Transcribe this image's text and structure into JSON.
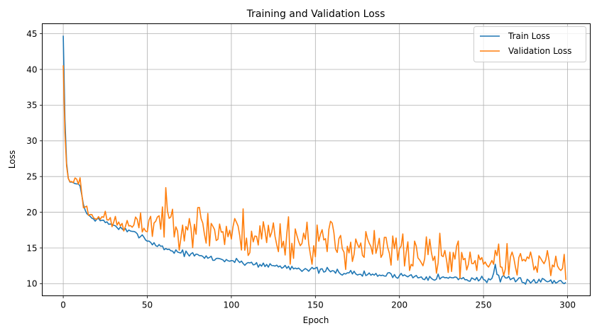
{
  "chart_data": {
    "type": "line",
    "title": "Training and Validation Loss",
    "xlabel": "Epoch",
    "ylabel": "Loss",
    "xlim": [
      -12.5,
      313.5
    ],
    "ylim": [
      8.3,
      46.4
    ],
    "xticks": [
      0,
      50,
      100,
      150,
      200,
      250,
      300
    ],
    "yticks": [
      10,
      15,
      20,
      25,
      30,
      35,
      40,
      45
    ],
    "grid": true,
    "legend_position": "top-right",
    "series": [
      {
        "name": "Train Loss",
        "color": "#1f77b4",
        "anchors": [
          [
            0,
            44.7
          ],
          [
            1,
            33.0
          ],
          [
            2,
            27.0
          ],
          [
            3,
            24.6
          ],
          [
            4,
            24.2
          ],
          [
            6,
            24.1
          ],
          [
            8,
            24.0
          ],
          [
            10,
            23.9
          ],
          [
            12,
            21.0
          ],
          [
            14,
            19.8
          ],
          [
            16,
            19.3
          ],
          [
            20,
            19.0
          ],
          [
            25,
            18.6
          ],
          [
            30,
            18.2
          ],
          [
            35,
            17.6
          ],
          [
            40,
            17.2
          ],
          [
            45,
            16.9
          ],
          [
            48,
            16.6
          ],
          [
            50,
            16.0
          ],
          [
            55,
            15.5
          ],
          [
            60,
            15.0
          ],
          [
            65,
            14.6
          ],
          [
            70,
            14.4
          ],
          [
            75,
            14.1
          ],
          [
            80,
            13.9
          ],
          [
            85,
            13.7
          ],
          [
            90,
            13.5
          ],
          [
            95,
            13.4
          ],
          [
            100,
            13.2
          ],
          [
            110,
            12.9
          ],
          [
            120,
            12.6
          ],
          [
            130,
            12.4
          ],
          [
            140,
            12.2
          ],
          [
            150,
            11.9
          ],
          [
            160,
            11.7
          ],
          [
            170,
            11.5
          ],
          [
            180,
            11.3
          ],
          [
            190,
            11.2
          ],
          [
            200,
            11.2
          ],
          [
            210,
            11.0
          ],
          [
            220,
            10.9
          ],
          [
            230,
            10.8
          ],
          [
            240,
            10.7
          ],
          [
            250,
            10.6
          ],
          [
            255,
            10.7
          ],
          [
            257,
            12.3
          ],
          [
            258,
            11.2
          ],
          [
            260,
            10.6
          ],
          [
            270,
            10.5
          ],
          [
            280,
            10.4
          ],
          [
            290,
            10.4
          ],
          [
            299,
            10.2
          ]
        ],
        "amp": [
          [
            0,
            0.05
          ],
          [
            15,
            0.18
          ],
          [
            100,
            0.22
          ],
          [
            200,
            0.22
          ],
          [
            299,
            0.25
          ]
        ],
        "seed": 7
      },
      {
        "name": "Validation Loss",
        "color": "#ff7f0e",
        "anchors": [
          [
            0,
            40.6
          ],
          [
            1,
            31.0
          ],
          [
            2,
            26.5
          ],
          [
            3,
            24.7
          ],
          [
            4,
            24.4
          ],
          [
            6,
            24.5
          ],
          [
            8,
            24.4
          ],
          [
            10,
            24.5
          ],
          [
            12,
            21.0
          ],
          [
            14,
            20.4
          ],
          [
            16,
            19.8
          ],
          [
            20,
            19.6
          ],
          [
            25,
            19.1
          ],
          [
            30,
            18.6
          ],
          [
            35,
            18.3
          ],
          [
            40,
            17.9
          ],
          [
            45,
            18.1
          ],
          [
            50,
            18.4
          ],
          [
            55,
            18.8
          ],
          [
            60,
            19.2
          ],
          [
            65,
            19.0
          ],
          [
            70,
            18.8
          ],
          [
            75,
            18.5
          ],
          [
            80,
            18.2
          ],
          [
            85,
            17.8
          ],
          [
            90,
            17.5
          ],
          [
            95,
            17.3
          ],
          [
            100,
            17.1
          ],
          [
            110,
            16.9
          ],
          [
            120,
            16.8
          ],
          [
            130,
            16.6
          ],
          [
            140,
            16.4
          ],
          [
            150,
            16.1
          ],
          [
            160,
            15.8
          ],
          [
            170,
            15.5
          ],
          [
            180,
            15.0
          ],
          [
            190,
            14.6
          ],
          [
            200,
            14.4
          ],
          [
            210,
            14.1
          ],
          [
            220,
            13.8
          ],
          [
            230,
            13.6
          ],
          [
            240,
            13.4
          ],
          [
            250,
            13.4
          ],
          [
            260,
            13.2
          ],
          [
            270,
            12.9
          ],
          [
            280,
            12.8
          ],
          [
            290,
            12.7
          ],
          [
            299,
            12.3
          ]
        ],
        "amp": [
          [
            0,
            0.05
          ],
          [
            12,
            0.4
          ],
          [
            40,
            0.6
          ],
          [
            55,
            1.5
          ],
          [
            100,
            1.8
          ],
          [
            200,
            1.5
          ],
          [
            299,
            0.9
          ]
        ],
        "seed": 23
      }
    ],
    "n_points": 300
  }
}
